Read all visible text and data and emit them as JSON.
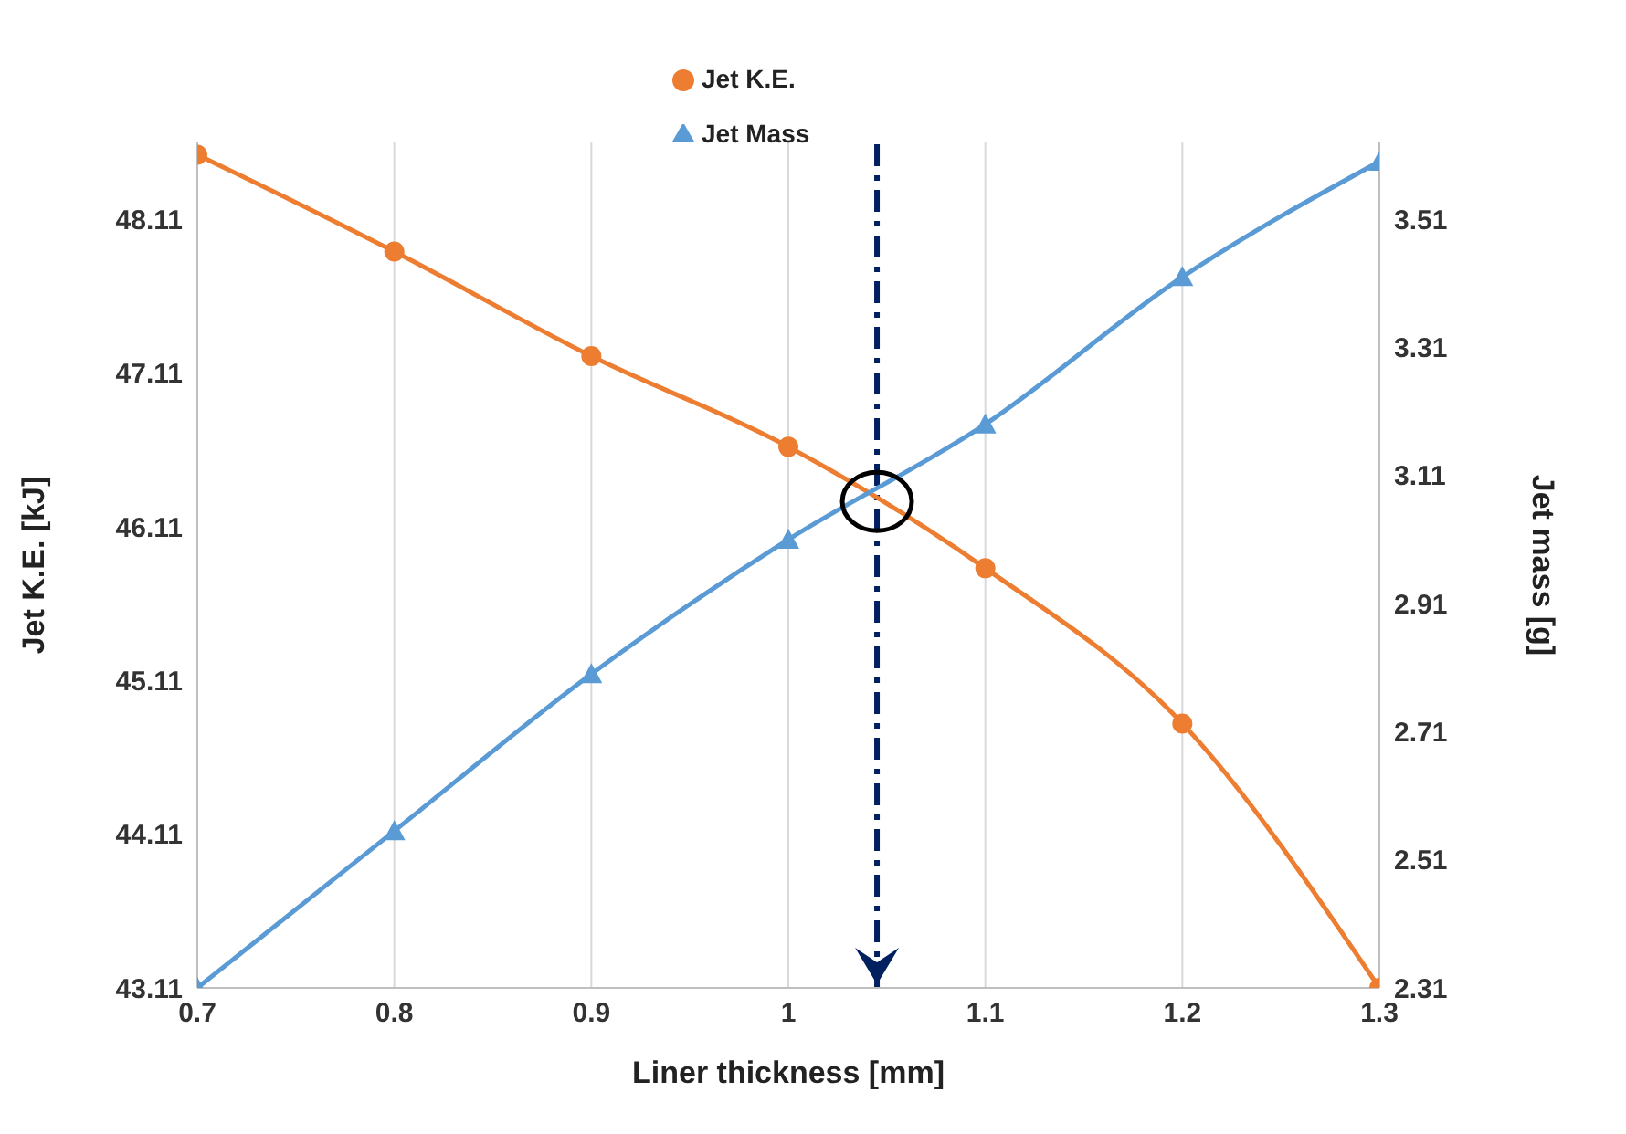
{
  "chart_data": {
    "type": "line",
    "xlabel": "Liner thickness [mm]",
    "ylabel": "Jet K.E. [kJ]",
    "y2label": "Jet mass [g]",
    "x": [
      0.7,
      0.8,
      0.9,
      1.0,
      1.1,
      1.2,
      1.3
    ],
    "series": [
      {
        "name": "Jet K.E.",
        "color": "#ed7d31",
        "marker": "circle",
        "values": [
          48.53,
          47.9,
          47.22,
          46.63,
          45.84,
          44.83,
          43.11
        ]
      },
      {
        "name": "Jet Mass",
        "color": "#5b9bd5",
        "marker": "triangle",
        "axis": "y2",
        "values": [
          2.31,
          2.555,
          2.8,
          3.01,
          3.19,
          3.42,
          3.6
        ]
      }
    ],
    "xlim": [
      0.7,
      1.3
    ],
    "xticks": [
      0.7,
      0.8,
      0.9,
      1,
      1.1,
      1.2,
      1.3
    ],
    "ylim": [
      43.11,
      48.61
    ],
    "yticks": [
      43.11,
      44.11,
      45.11,
      46.11,
      47.11,
      48.11
    ],
    "y2lim": [
      2.31,
      3.63
    ],
    "y2ticks": [
      2.31,
      2.51,
      2.71,
      2.91,
      3.11,
      3.31,
      3.51
    ],
    "ref_lines": [
      {
        "axis": "x",
        "value": 1.045,
        "color": "#002060",
        "line_style": "dashed"
      }
    ],
    "grid": "x",
    "legend": "top",
    "line_style": "solid"
  }
}
